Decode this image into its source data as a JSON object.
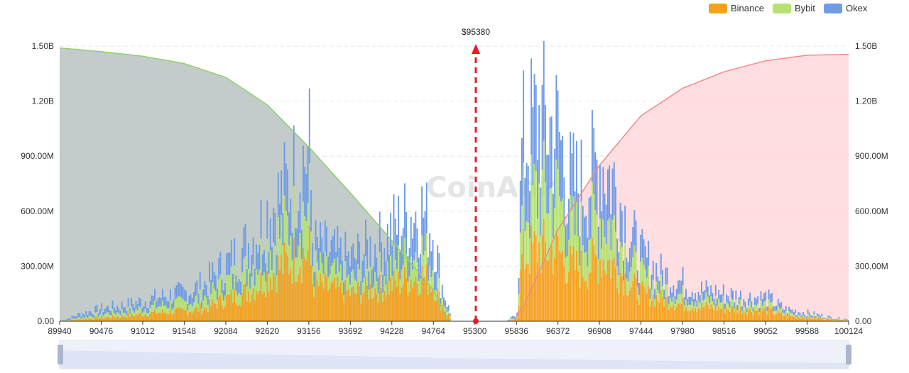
{
  "watermark": "CoinAnk",
  "chart_data": {
    "type": "bar",
    "legend": {
      "position": "top-right",
      "items": [
        {
          "name": "Binance",
          "color": "#f5a21b"
        },
        {
          "name": "Bybit",
          "color": "#b5e36e"
        },
        {
          "name": "Okex",
          "color": "#6e9be6"
        }
      ]
    },
    "current_price_label": "$95380",
    "current_price": 95380,
    "x_ticks": [
      "89940",
      "90476",
      "91012",
      "91548",
      "92084",
      "92620",
      "93156",
      "93692",
      "94228",
      "94764",
      "95300",
      "95836",
      "96372",
      "96908",
      "97444",
      "97980",
      "98516",
      "99052",
      "99588",
      "100124"
    ],
    "xlim": [
      89940,
      100124
    ],
    "y_ticks_left": [
      "0.00",
      "300.00M",
      "600.00M",
      "900.00M",
      "1.20B",
      "1.50B"
    ],
    "y_ticks_right": [
      "0.00",
      "300.00M",
      "600.00M",
      "900.00M",
      "1.20B",
      "1.50B"
    ],
    "ylim": [
      0,
      1500000000
    ],
    "grid": true,
    "bar_profile": {
      "unit": "M",
      "x": [
        89940,
        90200,
        90476,
        90800,
        91012,
        91300,
        91548,
        91800,
        92084,
        92300,
        92500,
        92620,
        92800,
        93000,
        93156,
        93200,
        93400,
        93692,
        93900,
        94100,
        94228,
        94400,
        94600,
        94764,
        94850,
        95000,
        95300,
        95700,
        95836,
        95900,
        96100,
        96372,
        96500,
        96700,
        96908,
        97100,
        97300,
        97444,
        97700,
        97980,
        98200,
        98516,
        98800,
        99052,
        99300,
        99588,
        99900,
        100124
      ],
      "binance": [
        0,
        10,
        20,
        30,
        40,
        50,
        55,
        70,
        120,
        150,
        200,
        250,
        300,
        350,
        380,
        200,
        180,
        150,
        170,
        180,
        200,
        220,
        250,
        200,
        100,
        0,
        0,
        0,
        10,
        350,
        400,
        380,
        300,
        280,
        350,
        300,
        200,
        150,
        120,
        90,
        80,
        70,
        60,
        60,
        30,
        20,
        10,
        5
      ],
      "bybit": [
        0,
        10,
        20,
        25,
        30,
        40,
        45,
        60,
        90,
        110,
        140,
        160,
        180,
        220,
        250,
        90,
        80,
        70,
        80,
        90,
        100,
        120,
        140,
        100,
        40,
        0,
        0,
        0,
        10,
        250,
        300,
        300,
        200,
        200,
        230,
        200,
        120,
        90,
        60,
        50,
        40,
        35,
        30,
        30,
        15,
        10,
        5,
        2
      ],
      "okex": [
        0,
        20,
        30,
        35,
        40,
        50,
        55,
        70,
        100,
        130,
        160,
        190,
        200,
        260,
        300,
        120,
        120,
        110,
        140,
        160,
        200,
        220,
        220,
        180,
        80,
        0,
        0,
        0,
        20,
        350,
        400,
        350,
        250,
        250,
        300,
        250,
        150,
        110,
        80,
        70,
        50,
        45,
        40,
        40,
        20,
        15,
        5,
        3
      ]
    },
    "cumulative_short_side": {
      "x": [
        89940,
        90476,
        91012,
        91548,
        92084,
        92620,
        93156,
        93692,
        94228,
        94764,
        94960
      ],
      "values": [
        1490000000,
        1470000000,
        1445000000,
        1405000000,
        1330000000,
        1180000000,
        950000000,
        700000000,
        440000000,
        170000000,
        0
      ],
      "color": "#90d06c"
    },
    "cumulative_long_side": {
      "x": [
        95800,
        95950,
        96372,
        96908,
        97444,
        97980,
        98516,
        99052,
        99588,
        100124
      ],
      "values": [
        0,
        100000000,
        500000000,
        850000000,
        1120000000,
        1270000000,
        1360000000,
        1420000000,
        1450000000,
        1455000000
      ],
      "color": "#f08a8a"
    }
  }
}
